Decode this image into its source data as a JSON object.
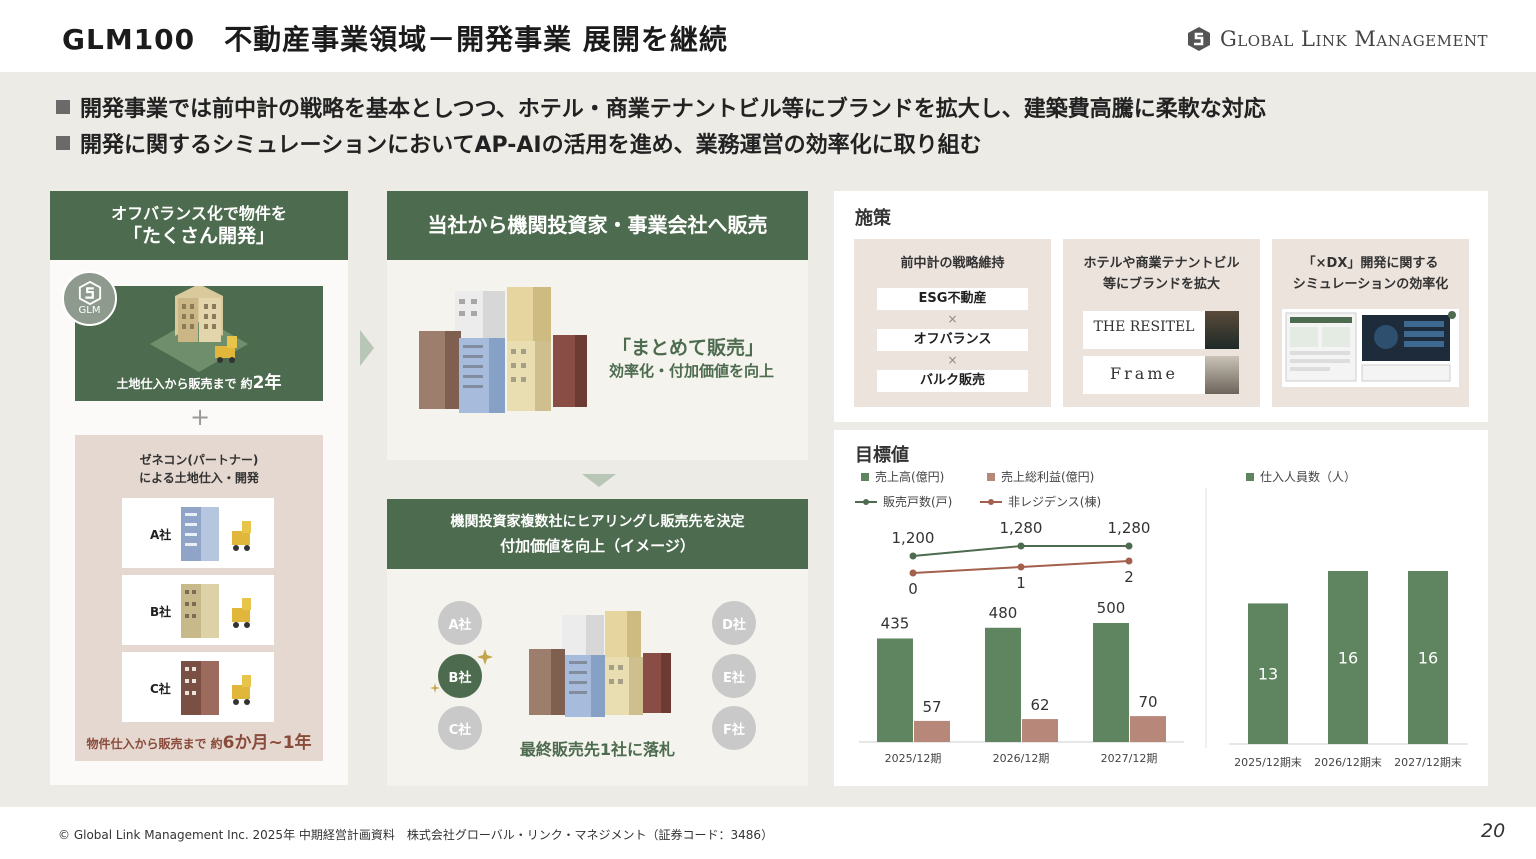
{
  "header": {
    "title": "GLM100　不動産事業領域－開発事業 展開を継続",
    "logo_text": "Global Link Management"
  },
  "bullets": [
    "開発事業では前中計の戦略を基本としつつ、ホテル・商業テナントビル等にブランドを拡大し、建築費高騰に柔軟な対応",
    "開発に関するシミュレーションにおいてAP-AIの活用を進め、業務運営の効率化に取り組む"
  ],
  "left_panel": {
    "title_line1": "オフバランス化で物件を",
    "title_line2": "「たくさん開発」",
    "badge": "GLM",
    "green_caption_prefix": "土地仕入から販売まで 約",
    "green_caption_value": "2年",
    "plus": "+",
    "tan_title_line1": "ゼネコン(パートナー)",
    "tan_title_line2": "による土地仕入・開発",
    "companies": [
      "A社",
      "B社",
      "C社"
    ],
    "tan_caption_prefix": "物件仕入から販売まで 約",
    "tan_caption_value": "6か月~1年"
  },
  "middle_top": {
    "title": "当社から機関投資家・事業会社へ販売",
    "message": "「まとめて販売」",
    "sub": "効率化・付加価値を向上"
  },
  "middle_bottom": {
    "title_line1": "機関投資家複数社にヒアリングし販売先を決定",
    "title_line2": "付加価値を向上（イメージ）",
    "left_companies": [
      "A社",
      "B社",
      "C社"
    ],
    "right_companies": [
      "D社",
      "E社",
      "F社"
    ],
    "final": "最終販売先1社に落札"
  },
  "measures": {
    "title": "施策",
    "card1": {
      "title": "前中計の戦略維持",
      "items": [
        "ESG不動産",
        "オフバランス",
        "バルク販売"
      ],
      "sep": "×"
    },
    "card2": {
      "title_line1": "ホテルや商業テナントビル",
      "title_line2": "等にブランドを拡大",
      "brands": [
        "THE RESITEL",
        "Frame"
      ]
    },
    "card3": {
      "title_line1": "「×DX」開発に関する",
      "title_line2": "シミュレーションの効率化"
    }
  },
  "targets": {
    "title": "目標値",
    "legend": {
      "sales": "売上高(億円)",
      "gross_profit": "売上総利益(億円)",
      "units": "販売戸数(戸)",
      "non_residence": "非レジデンス(棟)",
      "staff": "仕入人員数（人）"
    }
  },
  "chart_data": [
    {
      "type": "bar",
      "title": "目標値",
      "categories": [
        "2025/12期",
        "2026/12期",
        "2027/12期"
      ],
      "series": [
        {
          "name": "売上高(億円)",
          "values": [
            435,
            480,
            500
          ],
          "color": "#5f8560"
        },
        {
          "name": "売上総利益(億円)",
          "values": [
            57,
            62,
            70
          ],
          "color": "#b7887a"
        },
        {
          "name": "販売戸数(戸)",
          "values": [
            1200,
            1280,
            1280
          ],
          "color": "#4d6b4e",
          "kind": "line"
        },
        {
          "name": "非レジデンス(棟)",
          "values": [
            0,
            1,
            2
          ],
          "color": "#a2604d",
          "kind": "line"
        }
      ],
      "value_labels": {
        "sales": [
          "435",
          "480",
          "500"
        ],
        "gross_profit": [
          "57",
          "62",
          "70"
        ],
        "units": [
          "1,200",
          "1,280",
          "1,280"
        ],
        "non_residence": [
          "0",
          "1",
          "2"
        ]
      },
      "grid": false
    },
    {
      "type": "bar",
      "categories": [
        "2025/12期末",
        "2026/12期末",
        "2027/12期末"
      ],
      "series": [
        {
          "name": "仕入人員数（人）",
          "values": [
            13,
            16,
            16
          ],
          "color": "#5f8560"
        }
      ],
      "grid": false
    }
  ],
  "footer": {
    "copyright": "© Global Link Management Inc. 2025年 中期経営計画資料　株式会社グローバル・リンク・マネジメント（証券コード：3486）",
    "page": "20"
  },
  "colors": {
    "green": "#4d6b4e",
    "bar_green": "#5f8560",
    "bar_rose": "#b7887a",
    "band": "#ecebe5",
    "tan": "#e5d8d0"
  }
}
